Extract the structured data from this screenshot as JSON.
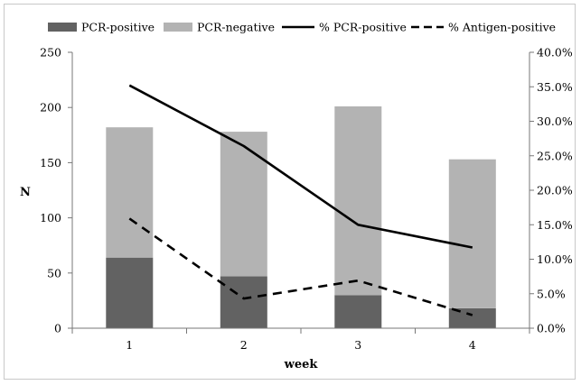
{
  "chart_data": {
    "type": "bar+line",
    "title": "",
    "xlabel": "week",
    "ylabel": "N",
    "categories": [
      "1",
      "2",
      "3",
      "4"
    ],
    "ylim": [
      0,
      250
    ],
    "y_ticks": [
      "0",
      "50",
      "100",
      "150",
      "200",
      "250"
    ],
    "y2lim": [
      0,
      0.4
    ],
    "y2_ticks": [
      "0.0%",
      "5.0%",
      "10.0%",
      "15.0%",
      "20.0%",
      "25.0%",
      "30.0%",
      "35.0%",
      "40.0%"
    ],
    "stacked_bars": [
      {
        "name": "PCR-positive",
        "color": "#626262",
        "values": [
          64,
          47,
          30,
          18
        ]
      },
      {
        "name": "PCR-negative",
        "color": "#b3b3b3",
        "values": [
          118,
          131,
          171,
          135
        ]
      }
    ],
    "lines": [
      {
        "name": "% PCR-positive",
        "style": "solid",
        "color": "#000000",
        "values": [
          0.352,
          0.264,
          0.15,
          0.117
        ]
      },
      {
        "name": "% Antigen-positive",
        "style": "dashed",
        "color": "#000000",
        "values": [
          0.159,
          0.043,
          0.069,
          0.019
        ]
      }
    ],
    "legend_position": "top",
    "grid": false
  }
}
